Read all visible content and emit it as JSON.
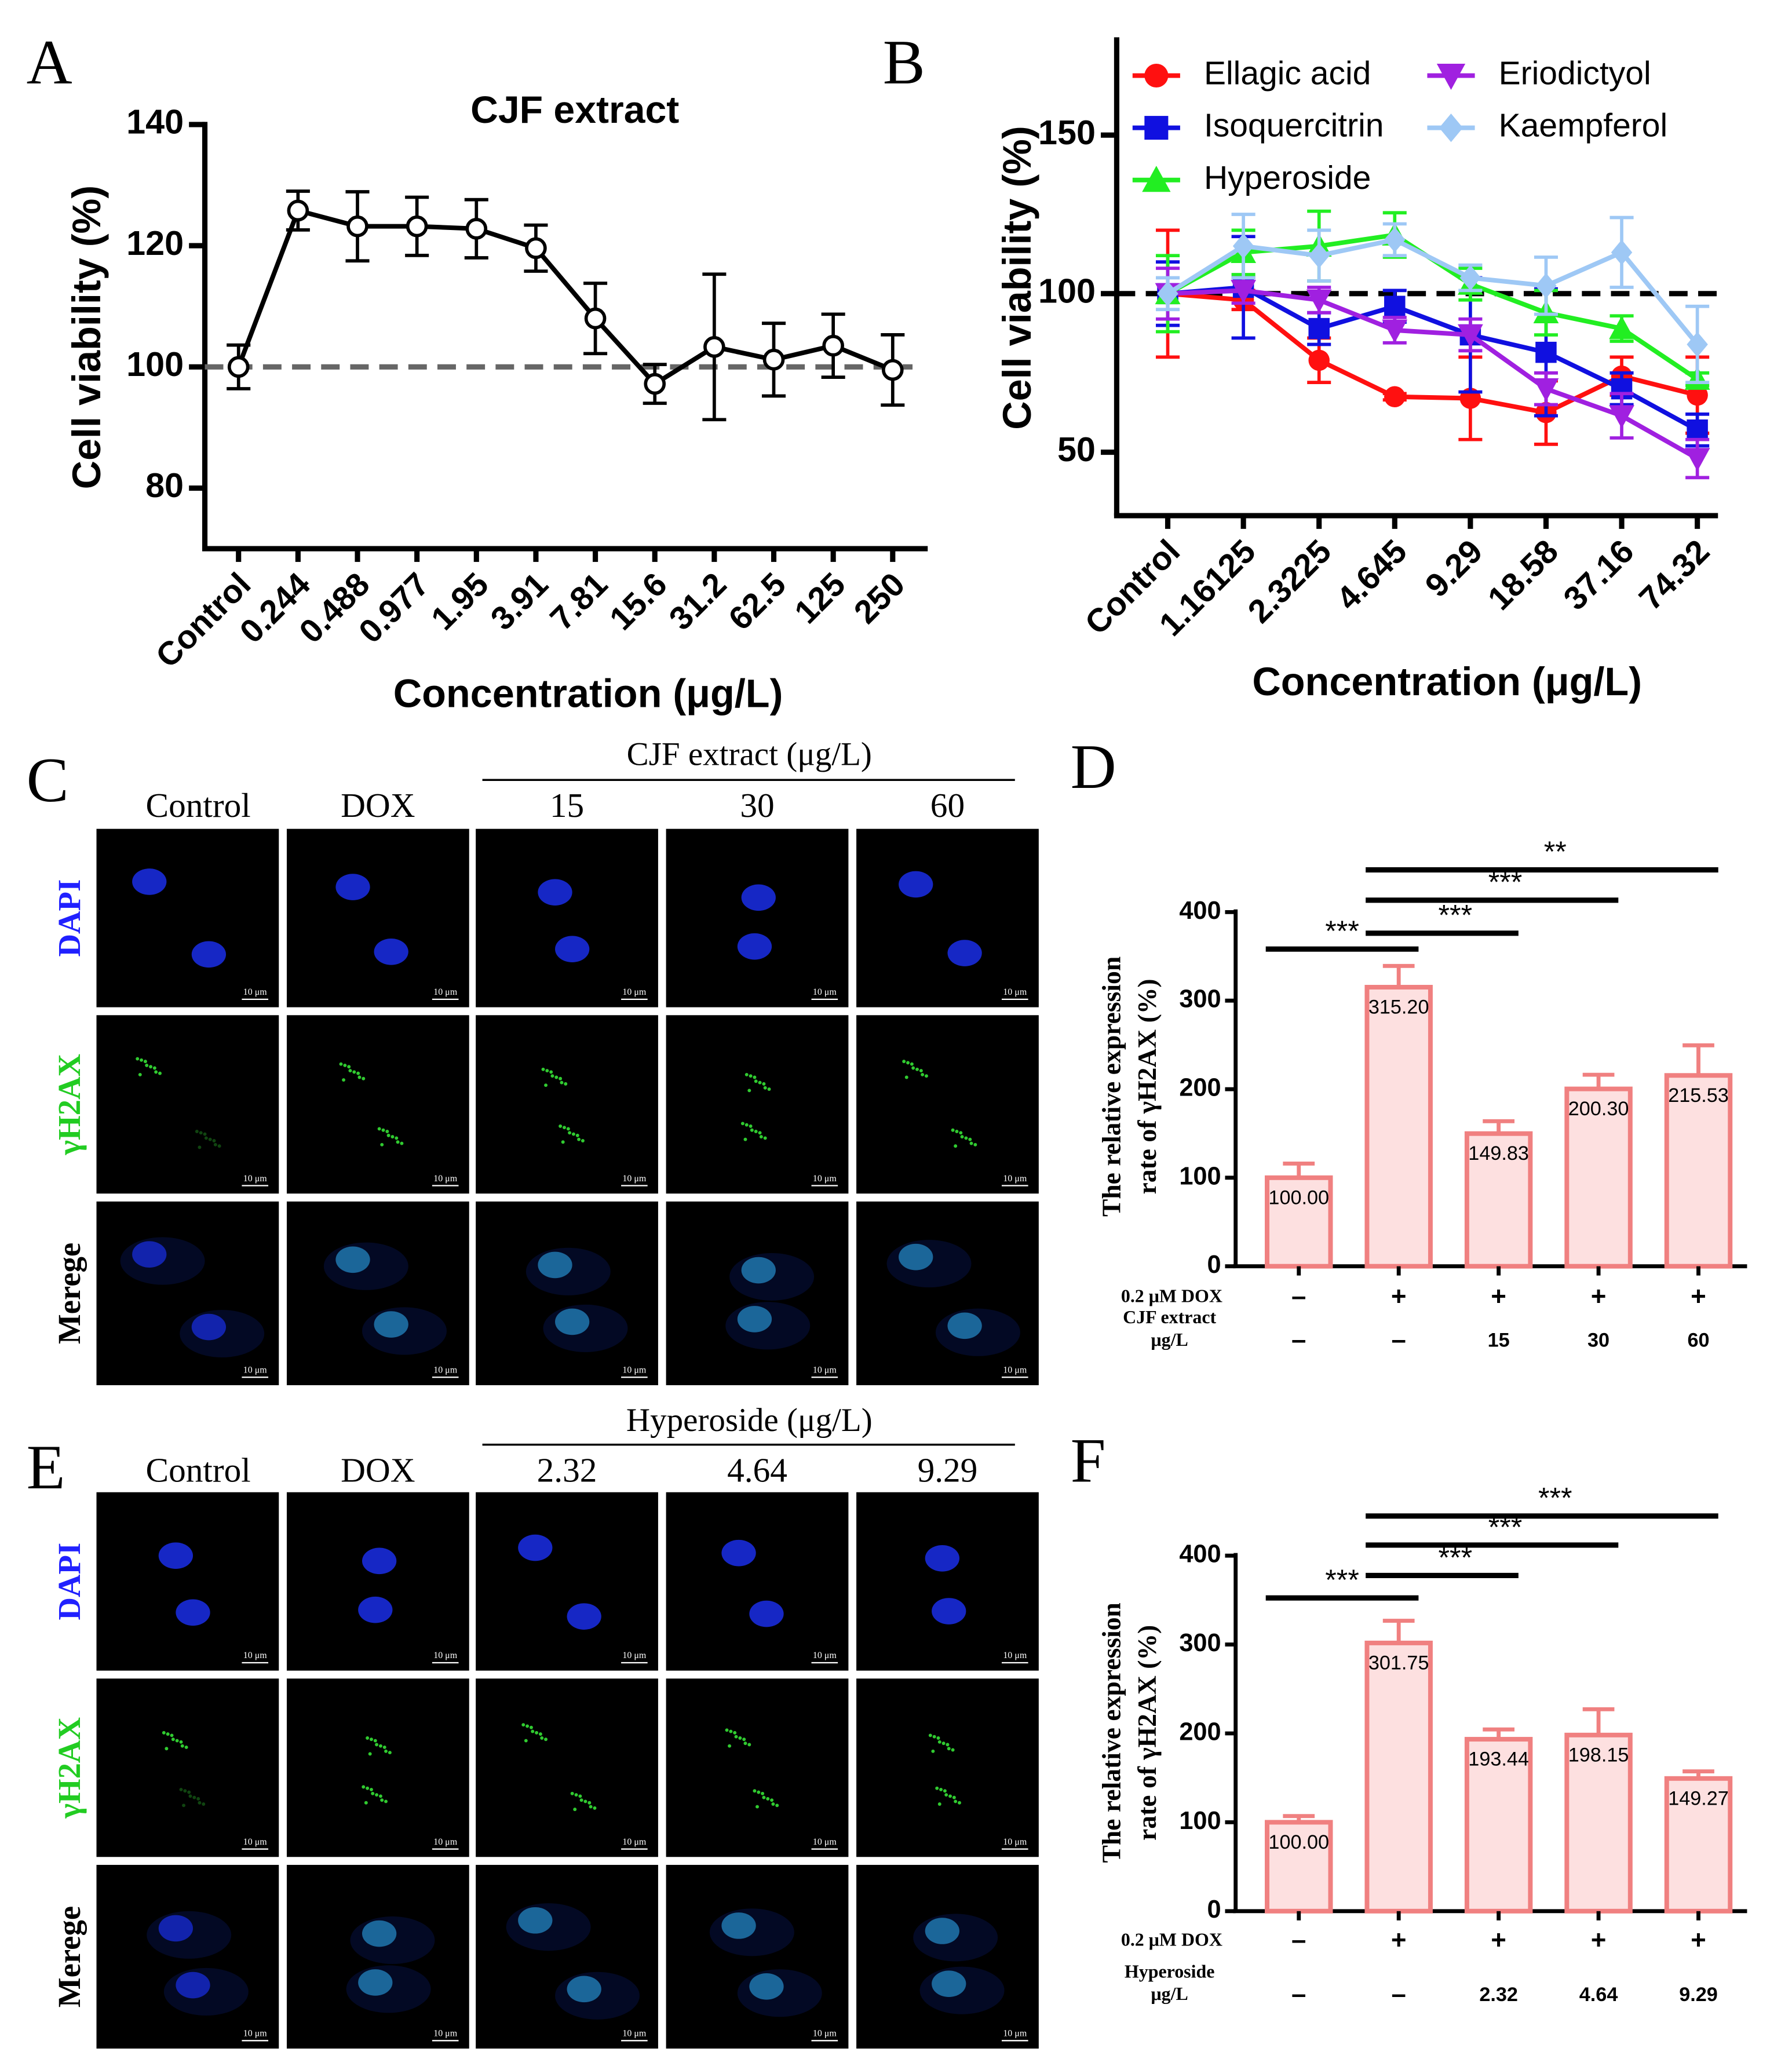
{
  "chart_data": [
    {
      "type": "line",
      "panel_label": "A",
      "title": "CJF extract",
      "xlabel": "Concentration (μg/L)",
      "ylabel": "Cell viability (%)",
      "categories": [
        "Control",
        "0.244",
        "0.488",
        "0.977",
        "1.95",
        "3.91",
        "7.81",
        "15.6",
        "31.2",
        "62.5",
        "125",
        "250"
      ],
      "values": [
        100,
        125.8,
        123.2,
        123.2,
        122.8,
        119.6,
        108,
        97.2,
        103.3,
        101.2,
        103.5,
        99.5
      ],
      "errors": [
        3.6,
        3.2,
        5.7,
        4.8,
        4.8,
        3.8,
        5.8,
        3.2,
        12,
        6,
        5.2,
        5.8
      ],
      "color": "#000000",
      "marker": "open-circle",
      "reference_line": {
        "value": 100,
        "color": "#666666"
      },
      "ylim": [
        70,
        140
      ],
      "yticks": [
        80,
        100,
        120,
        140
      ]
    },
    {
      "type": "line",
      "panel_label": "B",
      "xlabel": "Concentration (μg/L)",
      "ylabel": "Cell viability (%)",
      "categories": [
        "Control",
        "1.16125",
        "2.3225",
        "4.645",
        "9.29",
        "18.58",
        "37.16",
        "74.32"
      ],
      "series": [
        {
          "name": "Ellagic acid",
          "color": "#ff1010",
          "marker": "circle",
          "values": [
            100,
            98,
            79,
            67.5,
            67,
            62.5,
            74,
            68
          ],
          "errors": [
            20,
            3,
            7,
            1,
            13,
            10,
            6,
            12
          ]
        },
        {
          "name": "Isoquercitrin",
          "color": "#1010e0",
          "marker": "square",
          "values": [
            100,
            102,
            89,
            96,
            87,
            81.5,
            70,
            57
          ],
          "errors": [
            10,
            16,
            5,
            5,
            18,
            20,
            5,
            5
          ]
        },
        {
          "name": "Hyperoside",
          "color": "#22ee22",
          "marker": "triangle-up",
          "values": [
            100,
            113,
            115,
            118.5,
            103,
            94,
            89,
            73
          ],
          "errors": [
            12,
            7,
            11,
            7,
            5,
            7,
            4,
            2
          ]
        },
        {
          "name": "Eriodictyol",
          "color": "#a020e0",
          "marker": "triangle-down",
          "values": [
            100,
            101,
            98,
            88.5,
            87,
            70,
            61.5,
            48
          ],
          "errors": [
            8,
            4,
            4,
            4,
            5,
            5,
            7,
            6
          ]
        },
        {
          "name": "Kaempferol",
          "color": "#9ec8f5",
          "marker": "diamond",
          "values": [
            100,
            115,
            112,
            117,
            105,
            102.5,
            113,
            84
          ],
          "errors": [
            5,
            10,
            8,
            5,
            4,
            9,
            11,
            12
          ]
        }
      ],
      "legend": "top-left",
      "reference_line": {
        "value": 100,
        "color": "#000000"
      },
      "ylim": [
        30,
        180
      ],
      "yticks": [
        50,
        100,
        150
      ]
    },
    {
      "type": "bar",
      "panel_label": "D",
      "ylabel": [
        "The relative expression",
        "rate of γH2AX (%)"
      ],
      "values": [
        100,
        315.2,
        149.83,
        200.3,
        215.53
      ],
      "value_labels": [
        "100.00",
        "315.20",
        "149.83",
        "200.30",
        "215.53"
      ],
      "errors": [
        16,
        24,
        14,
        16,
        34
      ],
      "color": "#fde0e0",
      "edge_color": "#f08080",
      "conditions": [
        {
          "label": [
            "0.2 μM DOX"
          ],
          "values": [
            "–",
            "+",
            "+",
            "+",
            "+"
          ]
        },
        {
          "label": [
            "CJF extract",
            "μg/L"
          ],
          "values": [
            "–",
            "–",
            "15",
            "30",
            "60"
          ]
        }
      ],
      "significance": [
        {
          "pair": [
            0,
            1
          ],
          "label": "***"
        },
        {
          "pair": [
            1,
            2
          ],
          "label": "***"
        },
        {
          "pair": [
            1,
            3
          ],
          "label": "***"
        },
        {
          "pair": [
            1,
            4
          ],
          "label": "**"
        }
      ],
      "ylim": [
        0,
        400
      ],
      "yticks": [
        0,
        100,
        200,
        300,
        400
      ]
    },
    {
      "type": "bar",
      "panel_label": "F",
      "ylabel": [
        "The relative expression",
        "rate of γH2AX (%)"
      ],
      "values": [
        100,
        301.75,
        193.44,
        198.15,
        149.27
      ],
      "value_labels": [
        "100.00",
        "301.75",
        "193.44",
        "198.15",
        "149.27"
      ],
      "errors": [
        7,
        25,
        11,
        29,
        8
      ],
      "color": "#fde0e0",
      "edge_color": "#f08080",
      "conditions": [
        {
          "label": [
            "0.2 μM DOX"
          ],
          "values": [
            "–",
            "+",
            "+",
            "+",
            "+"
          ]
        },
        {
          "label": [
            "Hyperoside",
            "μg/L"
          ],
          "values": [
            "–",
            "–",
            "2.32",
            "4.64",
            "9.29"
          ]
        }
      ],
      "significance": [
        {
          "pair": [
            0,
            1
          ],
          "label": "***"
        },
        {
          "pair": [
            1,
            2
          ],
          "label": "***"
        },
        {
          "pair": [
            1,
            3
          ],
          "label": "***"
        },
        {
          "pair": [
            1,
            4
          ],
          "label": "***"
        }
      ],
      "ylim": [
        0,
        400
      ],
      "yticks": [
        0,
        100,
        200,
        300,
        400
      ]
    }
  ],
  "image_panels": [
    {
      "panel_label": "C",
      "group_label": "CJF extract (μg/L)",
      "columns": [
        "Control",
        "DOX",
        "15",
        "30",
        "60"
      ],
      "rows": [
        "DAPI",
        "γH2AX",
        "Merege"
      ],
      "scale_bar": "10 μm"
    },
    {
      "panel_label": "E",
      "group_label": "Hyperoside (μg/L)",
      "columns": [
        "Control",
        "DOX",
        "2.32",
        "4.64",
        "9.29"
      ],
      "rows": [
        "DAPI",
        "γH2AX",
        "Merege"
      ],
      "scale_bar": "10 μm"
    }
  ]
}
